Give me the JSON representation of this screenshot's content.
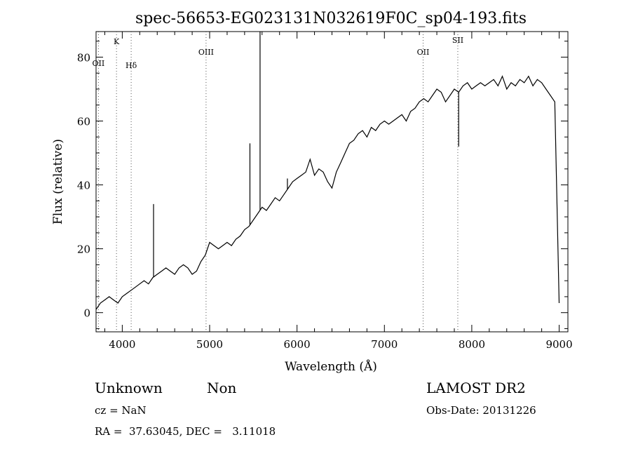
{
  "chart_data": {
    "type": "line",
    "title": "spec-56653-EG023131N032619F0C_sp04-193.fits",
    "xlabel": "Wavelength (Å)",
    "ylabel": "Flux (relative)",
    "xlim": [
      3700,
      9100
    ],
    "ylim": [
      -6,
      88
    ],
    "x_ticks": [
      4000,
      5000,
      6000,
      7000,
      8000,
      9000
    ],
    "y_ticks": [
      0,
      20,
      40,
      60,
      80
    ],
    "grid": false,
    "line_color": "#000000",
    "spectral_lines": [
      {
        "label": "OII",
        "wavelength": 3727
      },
      {
        "label": "K",
        "wavelength": 3934
      },
      {
        "label": "Hδ",
        "wavelength": 4102
      },
      {
        "label": "OIII",
        "wavelength": 4959
      },
      {
        "label": "OII",
        "wavelength": 7443
      },
      {
        "label": "SII",
        "wavelength": 7840
      }
    ],
    "series": [
      {
        "x": [
          3700,
          3750,
          3800,
          3850,
          3900,
          3950,
          4000,
          4050,
          4100,
          4150,
          4200,
          4250,
          4300,
          4350,
          4400,
          4450,
          4500,
          4550,
          4600,
          4650,
          4700,
          4750,
          4800,
          4850,
          4900,
          4950,
          5000,
          5050,
          5100,
          5150,
          5200,
          5250,
          5300,
          5350,
          5400,
          5450,
          5500,
          5550,
          5600,
          5650,
          5700,
          5750,
          5800,
          5850,
          5900,
          5950,
          6000,
          6050,
          6100,
          6150,
          6200,
          6250,
          6300,
          6350,
          6400,
          6450,
          6500,
          6550,
          6600,
          6650,
          6700,
          6750,
          6800,
          6850,
          6900,
          6950,
          7000,
          7050,
          7100,
          7150,
          7200,
          7250,
          7300,
          7350,
          7400,
          7450,
          7500,
          7550,
          7600,
          7650,
          7700,
          7750,
          7800,
          7850,
          7900,
          7950,
          8000,
          8050,
          8100,
          8150,
          8200,
          8250,
          8300,
          8350,
          8400,
          8450,
          8500,
          8550,
          8600,
          8650,
          8700,
          8750,
          8800,
          8850,
          8900,
          8950,
          9000
        ],
        "y": [
          1,
          3,
          4,
          5,
          4,
          3,
          5,
          6,
          7,
          8,
          9,
          10,
          9,
          11,
          12,
          13,
          14,
          13,
          12,
          14,
          15,
          14,
          12,
          13,
          16,
          18,
          22,
          21,
          20,
          21,
          22,
          21,
          23,
          24,
          26,
          27,
          29,
          31,
          33,
          32,
          34,
          36,
          35,
          37,
          39,
          41,
          42,
          43,
          44,
          48,
          43,
          45,
          44,
          41,
          39,
          44,
          47,
          50,
          53,
          54,
          56,
          57,
          55,
          58,
          57,
          59,
          60,
          59,
          60,
          61,
          62,
          60,
          63,
          64,
          66,
          67,
          66,
          68,
          70,
          69,
          66,
          68,
          70,
          69,
          71,
          72,
          70,
          71,
          72,
          71,
          72,
          73,
          71,
          74,
          70,
          72,
          71,
          73,
          72,
          74,
          71,
          73,
          72,
          70,
          68,
          66,
          3
        ]
      }
    ],
    "spikes": [
      {
        "x": 4358,
        "y": 34
      },
      {
        "x": 5461,
        "y": 53
      },
      {
        "x": 5577,
        "y": 88
      },
      {
        "x": 5890,
        "y": 42
      },
      {
        "x": 7850,
        "y": 52
      }
    ]
  },
  "info": {
    "class_label": "Unknown",
    "subclass_label": "Non",
    "survey": "LAMOST DR2",
    "cz": "cz = NaN",
    "obs_date": "Obs-Date: 20131226",
    "coords": "RA =  37.63045, DEC =   3.11018"
  }
}
